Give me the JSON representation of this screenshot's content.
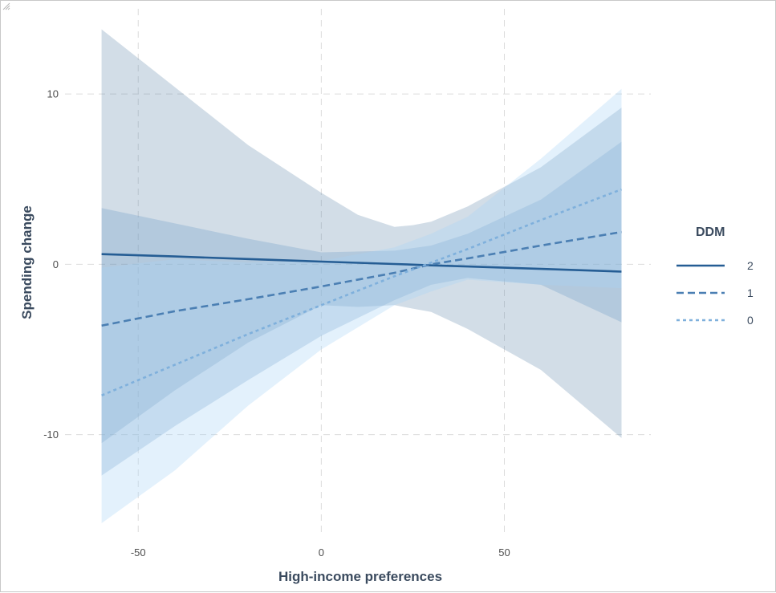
{
  "chart_data": {
    "type": "line",
    "title": "",
    "xlabel": "High-income preferences",
    "ylabel": "Spending change",
    "xlim": [
      -70,
      90
    ],
    "ylim": [
      -16,
      15
    ],
    "x_ticks": [
      -50,
      0,
      50
    ],
    "y_ticks": [
      -10,
      0,
      10
    ],
    "x_tick_labels": [
      "-50",
      "0",
      "50"
    ],
    "y_tick_labels": [
      "-10",
      "0",
      "10"
    ],
    "grid": true,
    "legend": {
      "title": "DDM",
      "placement": "right",
      "entries": [
        {
          "label": "2",
          "style": "solid"
        },
        {
          "label": "1",
          "style": "dashed"
        },
        {
          "label": "0",
          "style": "dotted"
        }
      ]
    },
    "series": [
      {
        "name": "2",
        "line_style": "solid",
        "color": "#255d94",
        "band_color": "#5f86a8",
        "band_opacity": 0.28,
        "x": [
          -60,
          -40,
          -20,
          0,
          10,
          20,
          25,
          30,
          40,
          60,
          82
        ],
        "y": [
          0.6,
          0.46,
          0.31,
          0.16,
          0.09,
          0.02,
          -0.02,
          -0.06,
          -0.13,
          -0.27,
          -0.43
        ],
        "lower": [
          -10.5,
          -7.4,
          -4.6,
          -2.4,
          -2.5,
          -2.4,
          -2.6,
          -2.8,
          -3.8,
          -6.2,
          -10.2
        ],
        "upper": [
          13.8,
          10.4,
          7.0,
          4.2,
          2.9,
          2.2,
          2.3,
          2.5,
          3.4,
          5.7,
          9.2
        ]
      },
      {
        "name": "1",
        "line_style": "dashed",
        "color": "#4b7fb3",
        "band_color": "#6c9ac7",
        "band_opacity": 0.3,
        "x": [
          -60,
          -40,
          -20,
          0,
          20,
          30,
          40,
          60,
          82
        ],
        "y": [
          -3.6,
          -2.75,
          -2.05,
          -1.3,
          -0.5,
          0.0,
          0.35,
          1.1,
          1.9
        ],
        "lower": [
          -12.4,
          -9.5,
          -6.8,
          -4.2,
          -2.1,
          -1.2,
          -0.8,
          -1.2,
          -3.4
        ],
        "upper": [
          3.3,
          2.4,
          1.5,
          0.7,
          0.8,
          1.1,
          1.8,
          3.8,
          7.2
        ]
      },
      {
        "name": "0",
        "line_style": "dotted",
        "color": "#7fb0dc",
        "band_color": "#a9d3f5",
        "band_opacity": 0.32,
        "x": [
          -60,
          -40,
          -20,
          0,
          20,
          30,
          40,
          60,
          82
        ],
        "y": [
          -7.7,
          -5.9,
          -4.1,
          -2.4,
          -0.7,
          0.1,
          0.9,
          2.6,
          4.4
        ],
        "lower": [
          -15.2,
          -12.1,
          -8.3,
          -5.0,
          -2.4,
          -1.6,
          -0.9,
          -1.2,
          -1.4
        ],
        "upper": [
          -0.2,
          0.3,
          0.1,
          0.2,
          1.0,
          1.8,
          2.8,
          6.2,
          10.3
        ]
      }
    ]
  }
}
